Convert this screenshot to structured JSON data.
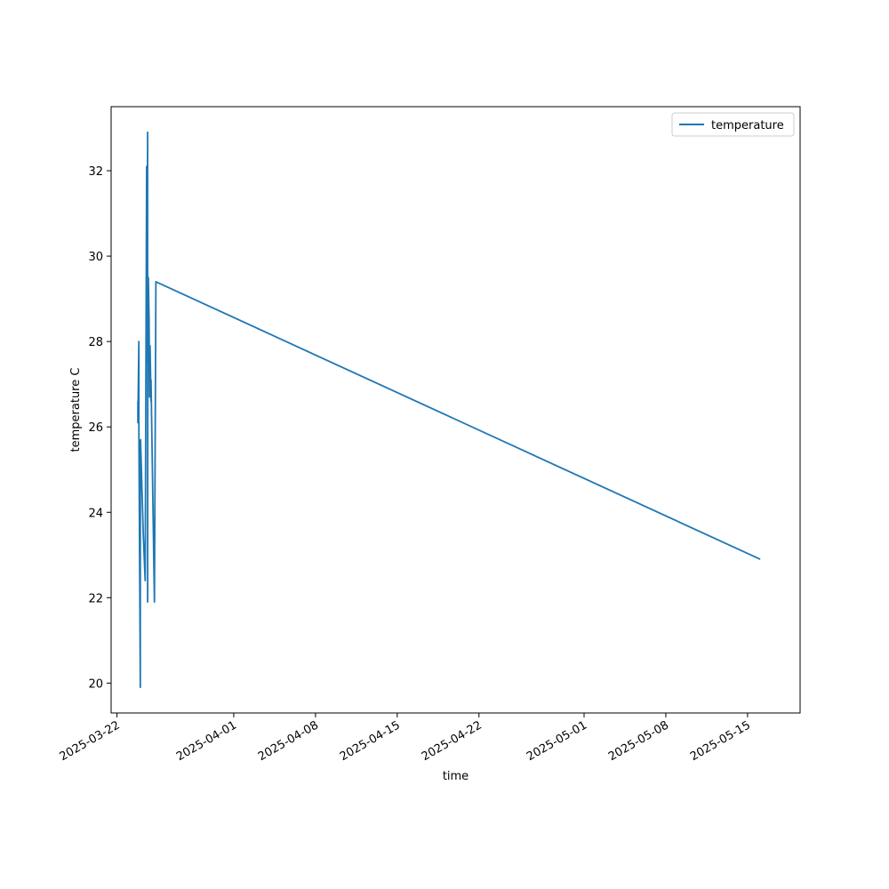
{
  "chart_data": {
    "type": "line",
    "xlabel": "time",
    "ylabel": "temperature C",
    "x_axis_type": "date",
    "x_ticks": [
      "2025-03-22",
      "2025-04-01",
      "2025-04-08",
      "2025-04-15",
      "2025-04-22",
      "2025-05-01",
      "2025-05-08",
      "2025-05-15"
    ],
    "y_ticks": [
      20,
      22,
      24,
      26,
      28,
      30,
      32
    ],
    "xlim": [
      "2025-03-21T12:00",
      "2025-05-19T12:00"
    ],
    "ylim": [
      19.3,
      33.5
    ],
    "grid": false,
    "legend_position": "top-right",
    "series": [
      {
        "name": "temperature",
        "color": "#1f77b4",
        "x": [
          "2025-03-23T19:00",
          "2025-03-23T19:00",
          "2025-03-23T21:00",
          "2025-03-23T21:00",
          "2025-03-24T00:00",
          "2025-03-24T00:00",
          "2025-03-24T00:30",
          "2025-03-24T06:00",
          "2025-03-24T10:00",
          "2025-03-24T13:00",
          "2025-03-24T13:00",
          "2025-03-24T14:00",
          "2025-03-24T15:00",
          "2025-03-24T15:00",
          "2025-03-24T15:30",
          "2025-03-24T16:30",
          "2025-03-24T16:30",
          "2025-03-24T18:00",
          "2025-03-24T19:00",
          "2025-03-24T20:00",
          "2025-03-24T22:00",
          "2025-03-24T22:00",
          "2025-03-25T05:00",
          "2025-03-25T08:00",
          "2025-03-25T08:00",
          "2025-05-16T02:00"
        ],
        "y": [
          26.6,
          26.1,
          28.0,
          26.1,
          19.9,
          25.6,
          25.7,
          23.5,
          22.4,
          32.1,
          27.5,
          28.0,
          32.9,
          21.9,
          29.4,
          27.6,
          29.5,
          28.5,
          26.7,
          27.9,
          26.6,
          27.1,
          21.9,
          29.3,
          29.4,
          22.9
        ]
      }
    ]
  }
}
